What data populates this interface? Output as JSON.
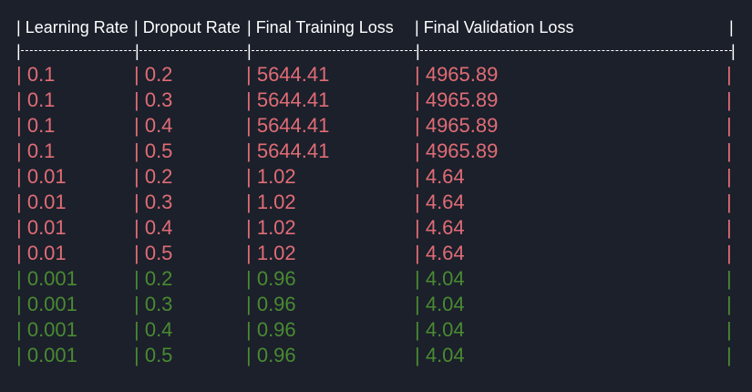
{
  "table": {
    "headers": [
      "Learning Rate",
      "Dropout Rate",
      "Final Training Loss",
      "Final Validation Loss"
    ],
    "colors": {
      "red": "#e06c75",
      "green": "#4a8a31",
      "text": "#ffffff",
      "background": "#1b202b"
    },
    "rows": [
      {
        "lr": "0.1",
        "dropout": "0.2",
        "train_loss": "5644.41",
        "val_loss": "4965.89",
        "color": "red"
      },
      {
        "lr": "0.1",
        "dropout": "0.3",
        "train_loss": "5644.41",
        "val_loss": "4965.89",
        "color": "red"
      },
      {
        "lr": "0.1",
        "dropout": "0.4",
        "train_loss": "5644.41",
        "val_loss": "4965.89",
        "color": "red"
      },
      {
        "lr": "0.1",
        "dropout": "0.5",
        "train_loss": "5644.41",
        "val_loss": "4965.89",
        "color": "red"
      },
      {
        "lr": "0.01",
        "dropout": "0.2",
        "train_loss": "1.02",
        "val_loss": "4.64",
        "color": "red"
      },
      {
        "lr": "0.01",
        "dropout": "0.3",
        "train_loss": "1.02",
        "val_loss": "4.64",
        "color": "red"
      },
      {
        "lr": "0.01",
        "dropout": "0.4",
        "train_loss": "1.02",
        "val_loss": "4.64",
        "color": "red"
      },
      {
        "lr": "0.01",
        "dropout": "0.5",
        "train_loss": "1.02",
        "val_loss": "4.64",
        "color": "red"
      },
      {
        "lr": "0.001",
        "dropout": "0.2",
        "train_loss": "0.96",
        "val_loss": "4.04",
        "color": "green"
      },
      {
        "lr": "0.001",
        "dropout": "0.3",
        "train_loss": "0.96",
        "val_loss": "4.04",
        "color": "green"
      },
      {
        "lr": "0.001",
        "dropout": "0.4",
        "train_loss": "0.96",
        "val_loss": "4.04",
        "color": "green"
      },
      {
        "lr": "0.001",
        "dropout": "0.5",
        "train_loss": "0.96",
        "val_loss": "4.04",
        "color": "green"
      }
    ]
  }
}
